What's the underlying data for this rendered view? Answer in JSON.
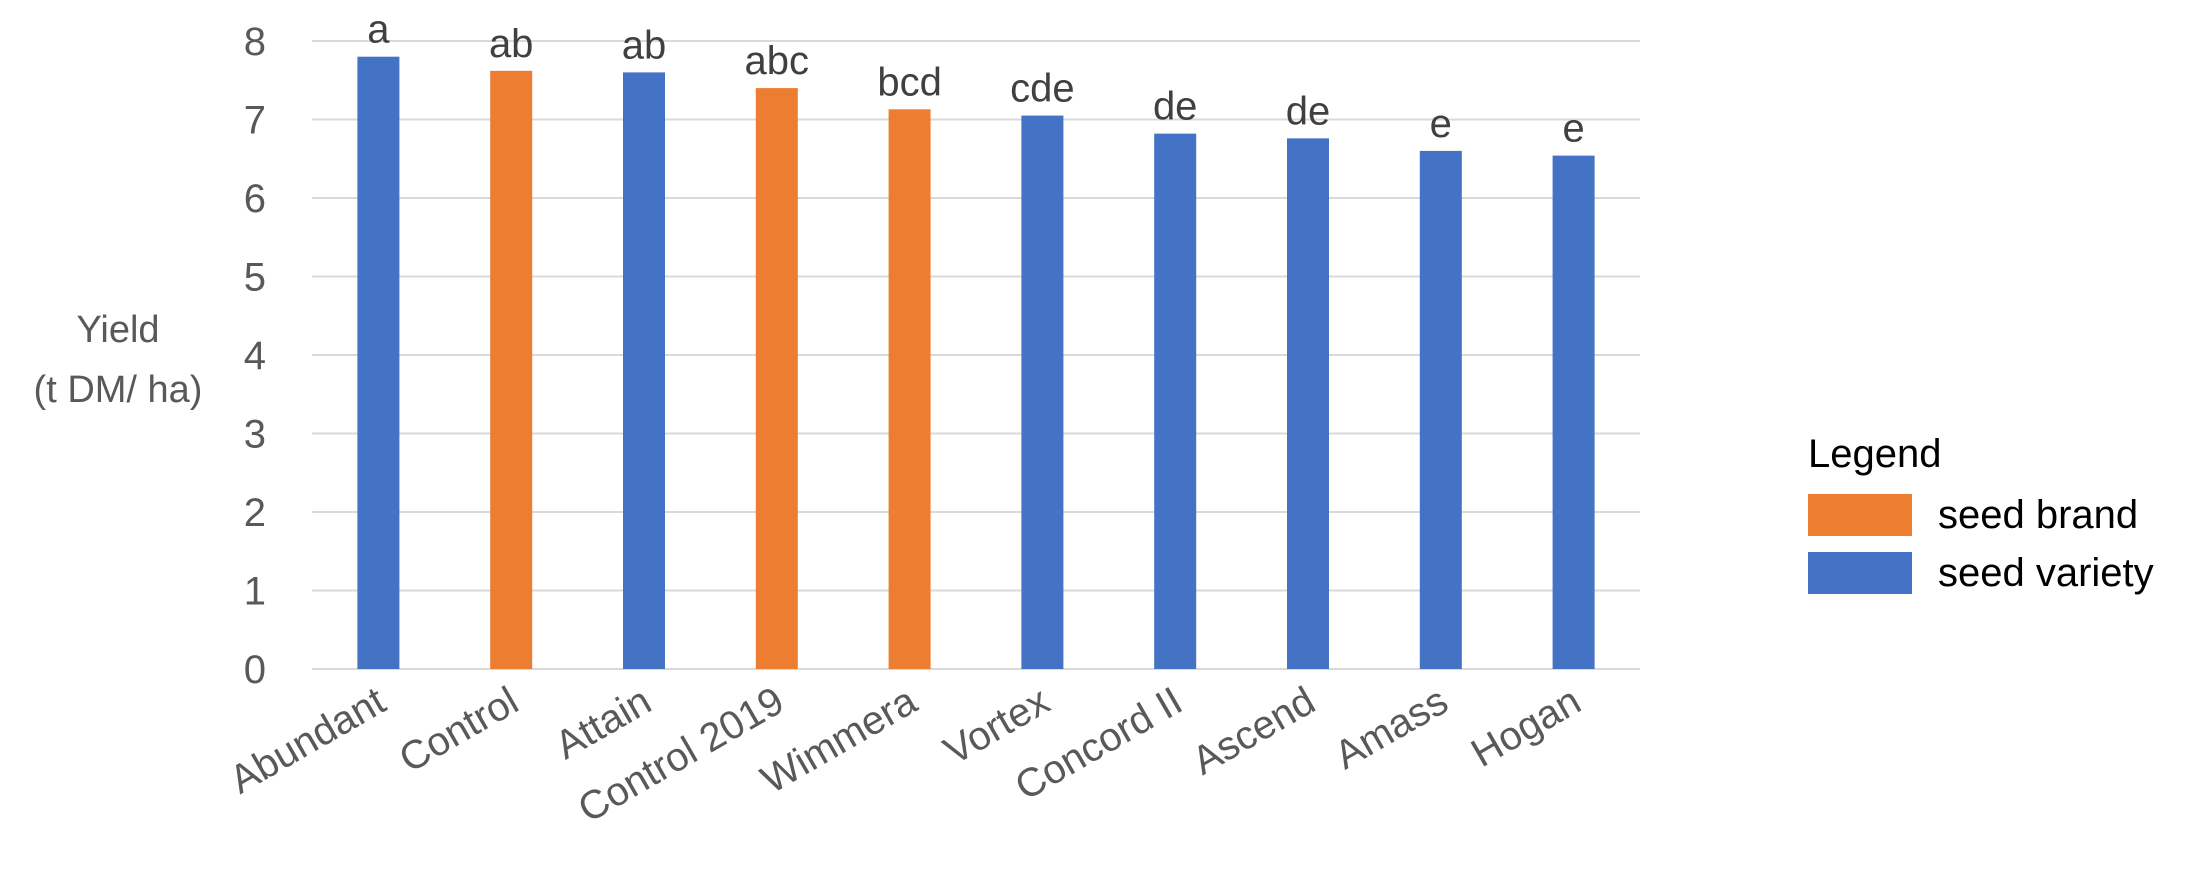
{
  "chart_data": {
    "type": "bar",
    "xlabel": "",
    "ylabel_lines": [
      "Yield",
      "(t DM/ ha)"
    ],
    "ylim": [
      0,
      8
    ],
    "yticks": [
      0,
      1,
      2,
      3,
      4,
      5,
      6,
      7,
      8
    ],
    "grid": true,
    "legend_position": "right",
    "categories": [
      "Abundant",
      "Control",
      "Attain",
      "Control 2019",
      "Wimmera",
      "Vortex",
      "Concord II",
      "Ascend",
      "Amass",
      "Hogan"
    ],
    "values": [
      7.8,
      7.62,
      7.6,
      7.4,
      7.13,
      7.05,
      6.82,
      6.76,
      6.6,
      6.54
    ],
    "letters": [
      "a",
      "ab",
      "ab",
      "abc",
      "bcd",
      "cde",
      "de",
      "de",
      "e",
      "e"
    ],
    "groups": [
      "seed variety",
      "seed brand",
      "seed variety",
      "seed brand",
      "seed brand",
      "seed variety",
      "seed variety",
      "seed variety",
      "seed variety",
      "seed variety"
    ],
    "colors": {
      "seed brand": "#ED7D31",
      "seed variety": "#4472C4"
    }
  },
  "legend": {
    "title": "Legend",
    "items": [
      {
        "label": "seed brand",
        "color": "#ED7D31"
      },
      {
        "label": "seed variety",
        "color": "#4472C4"
      }
    ]
  }
}
